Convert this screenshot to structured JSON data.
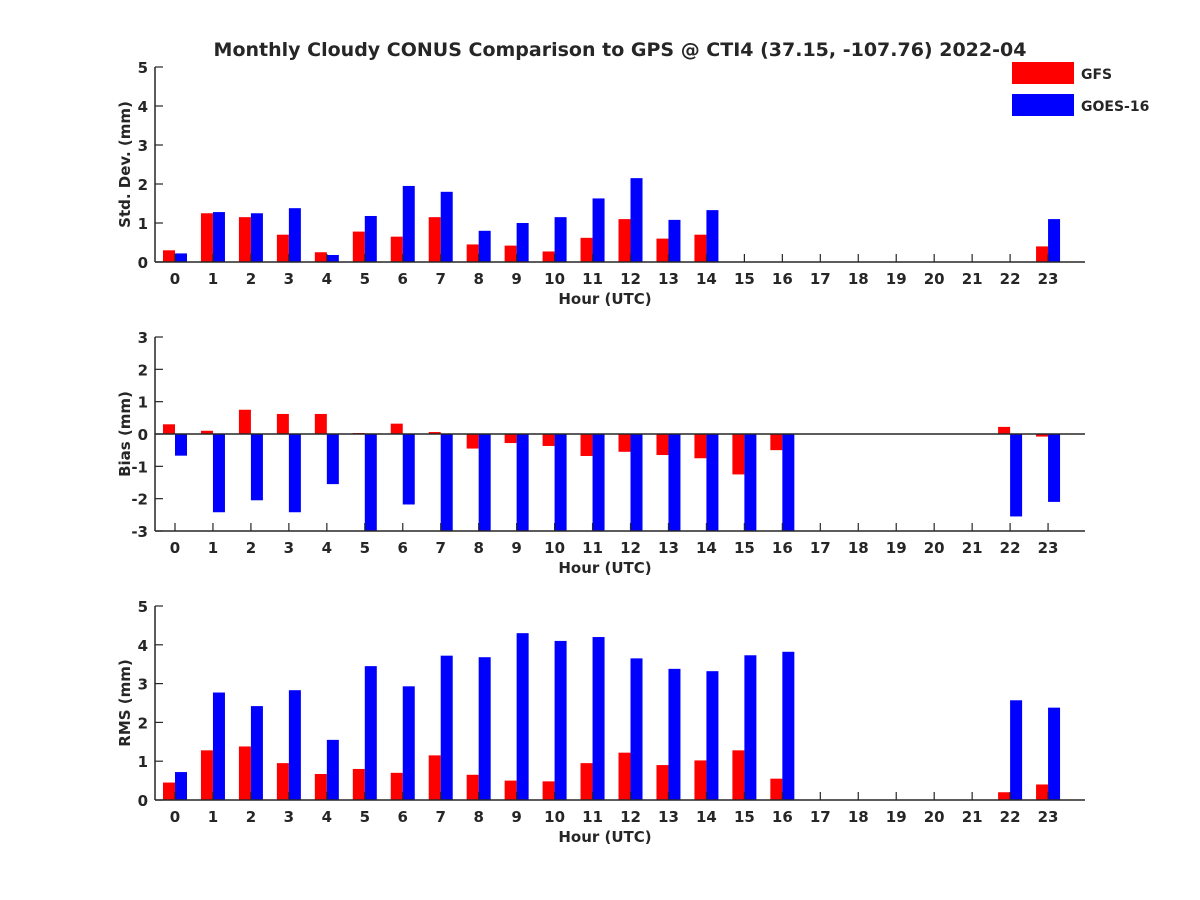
{
  "chart_data": [
    {
      "type": "bar",
      "title": "Monthly Cloudy CONUS Comparison to GPS @ CTI4 (37.15, -107.76) 2022-04",
      "xlabel": "Hour (UTC)",
      "ylabel": "Std. Dev. (mm)",
      "ylim": [
        0,
        5
      ],
      "yticks": [
        0,
        1,
        2,
        3,
        4,
        5
      ],
      "categories": [
        "0",
        "1",
        "2",
        "3",
        "4",
        "5",
        "6",
        "7",
        "8",
        "9",
        "10",
        "11",
        "12",
        "13",
        "14",
        "15",
        "16",
        "17",
        "18",
        "19",
        "20",
        "21",
        "22",
        "23"
      ],
      "legend": {
        "position": "top-right"
      },
      "series": [
        {
          "name": "GFS",
          "color": "#ff0000",
          "values": [
            0.3,
            1.25,
            1.15,
            0.7,
            0.25,
            0.78,
            0.65,
            1.15,
            0.45,
            0.42,
            0.27,
            0.62,
            1.1,
            0.6,
            0.7,
            null,
            null,
            null,
            null,
            null,
            null,
            null,
            null,
            0.4
          ]
        },
        {
          "name": "GOES-16",
          "color": "#0000ff",
          "values": [
            0.22,
            1.28,
            1.25,
            1.38,
            0.18,
            1.18,
            1.95,
            1.8,
            0.8,
            1.0,
            1.15,
            1.63,
            2.15,
            1.08,
            1.33,
            null,
            null,
            null,
            null,
            null,
            null,
            null,
            null,
            1.1
          ]
        }
      ]
    },
    {
      "type": "bar",
      "title": "",
      "xlabel": "Hour (UTC)",
      "ylabel": "Bias (mm)",
      "ylim": [
        -3,
        3
      ],
      "yticks": [
        -3,
        -2,
        -1,
        0,
        1,
        2,
        3
      ],
      "zero_line": true,
      "categories": [
        "0",
        "1",
        "2",
        "3",
        "4",
        "5",
        "6",
        "7",
        "8",
        "9",
        "10",
        "11",
        "12",
        "13",
        "14",
        "15",
        "16",
        "17",
        "18",
        "19",
        "20",
        "21",
        "22",
        "23"
      ],
      "series": [
        {
          "name": "GFS",
          "color": "#ff0000",
          "values": [
            0.3,
            0.1,
            0.75,
            0.62,
            0.62,
            0.03,
            0.32,
            0.06,
            -0.45,
            -0.28,
            -0.37,
            -0.68,
            -0.55,
            -0.65,
            -0.75,
            -1.25,
            -0.5,
            null,
            null,
            null,
            null,
            null,
            0.22,
            -0.08
          ]
        },
        {
          "name": "GOES-16",
          "color": "#0000ff",
          "values": [
            -0.67,
            -2.42,
            -2.05,
            -2.42,
            -1.55,
            -3.0,
            -2.18,
            -3.0,
            -3.0,
            -3.0,
            -3.0,
            -3.0,
            -3.0,
            -3.0,
            -3.0,
            -3.0,
            -3.0,
            null,
            null,
            null,
            null,
            null,
            -2.55,
            -2.1
          ]
        }
      ]
    },
    {
      "type": "bar",
      "title": "",
      "xlabel": "Hour (UTC)",
      "ylabel": "RMS (mm)",
      "ylim": [
        0,
        5
      ],
      "yticks": [
        0,
        1,
        2,
        3,
        4,
        5
      ],
      "categories": [
        "0",
        "1",
        "2",
        "3",
        "4",
        "5",
        "6",
        "7",
        "8",
        "9",
        "10",
        "11",
        "12",
        "13",
        "14",
        "15",
        "16",
        "17",
        "18",
        "19",
        "20",
        "21",
        "22",
        "23"
      ],
      "series": [
        {
          "name": "GFS",
          "color": "#ff0000",
          "values": [
            0.45,
            1.28,
            1.38,
            0.95,
            0.67,
            0.8,
            0.7,
            1.15,
            0.65,
            0.5,
            0.48,
            0.95,
            1.22,
            0.9,
            1.02,
            1.28,
            0.55,
            null,
            null,
            null,
            null,
            null,
            0.2,
            0.4
          ]
        },
        {
          "name": "GOES-16",
          "color": "#0000ff",
          "values": [
            0.72,
            2.77,
            2.42,
            2.83,
            1.55,
            3.45,
            2.93,
            3.72,
            3.68,
            4.3,
            4.1,
            4.2,
            3.65,
            3.38,
            3.32,
            3.73,
            3.82,
            null,
            null,
            null,
            null,
            null,
            2.57,
            2.38
          ]
        }
      ]
    }
  ]
}
